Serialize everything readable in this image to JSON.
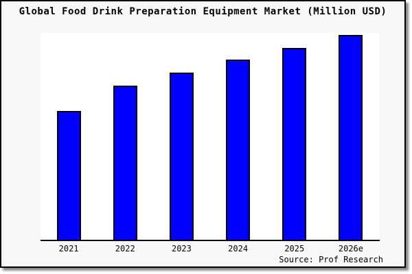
{
  "colors": {
    "bar_fill": "#0000ff",
    "bar_border": "#000000",
    "figure_bg": "#f8f8f8",
    "plot_bg": "#ffffff",
    "text": "#000000"
  },
  "chart_data": {
    "type": "bar",
    "title": "Global Food Drink Preparation Equipment Market (Million USD)",
    "categories": [
      "2021",
      "2022",
      "2023",
      "2024",
      "2025",
      "2026e"
    ],
    "values": [
      62.3,
      74.5,
      80.8,
      87.1,
      92.8,
      99.0
    ],
    "values_note": "y-axis is unlabeled in the chart; values are estimated bar heights as a percent of the plot-area maximum",
    "xlabel": "",
    "ylabel": "",
    "ylim": [
      0,
      100
    ],
    "grid": false,
    "legend": false,
    "source": "Source: Prof Research"
  }
}
